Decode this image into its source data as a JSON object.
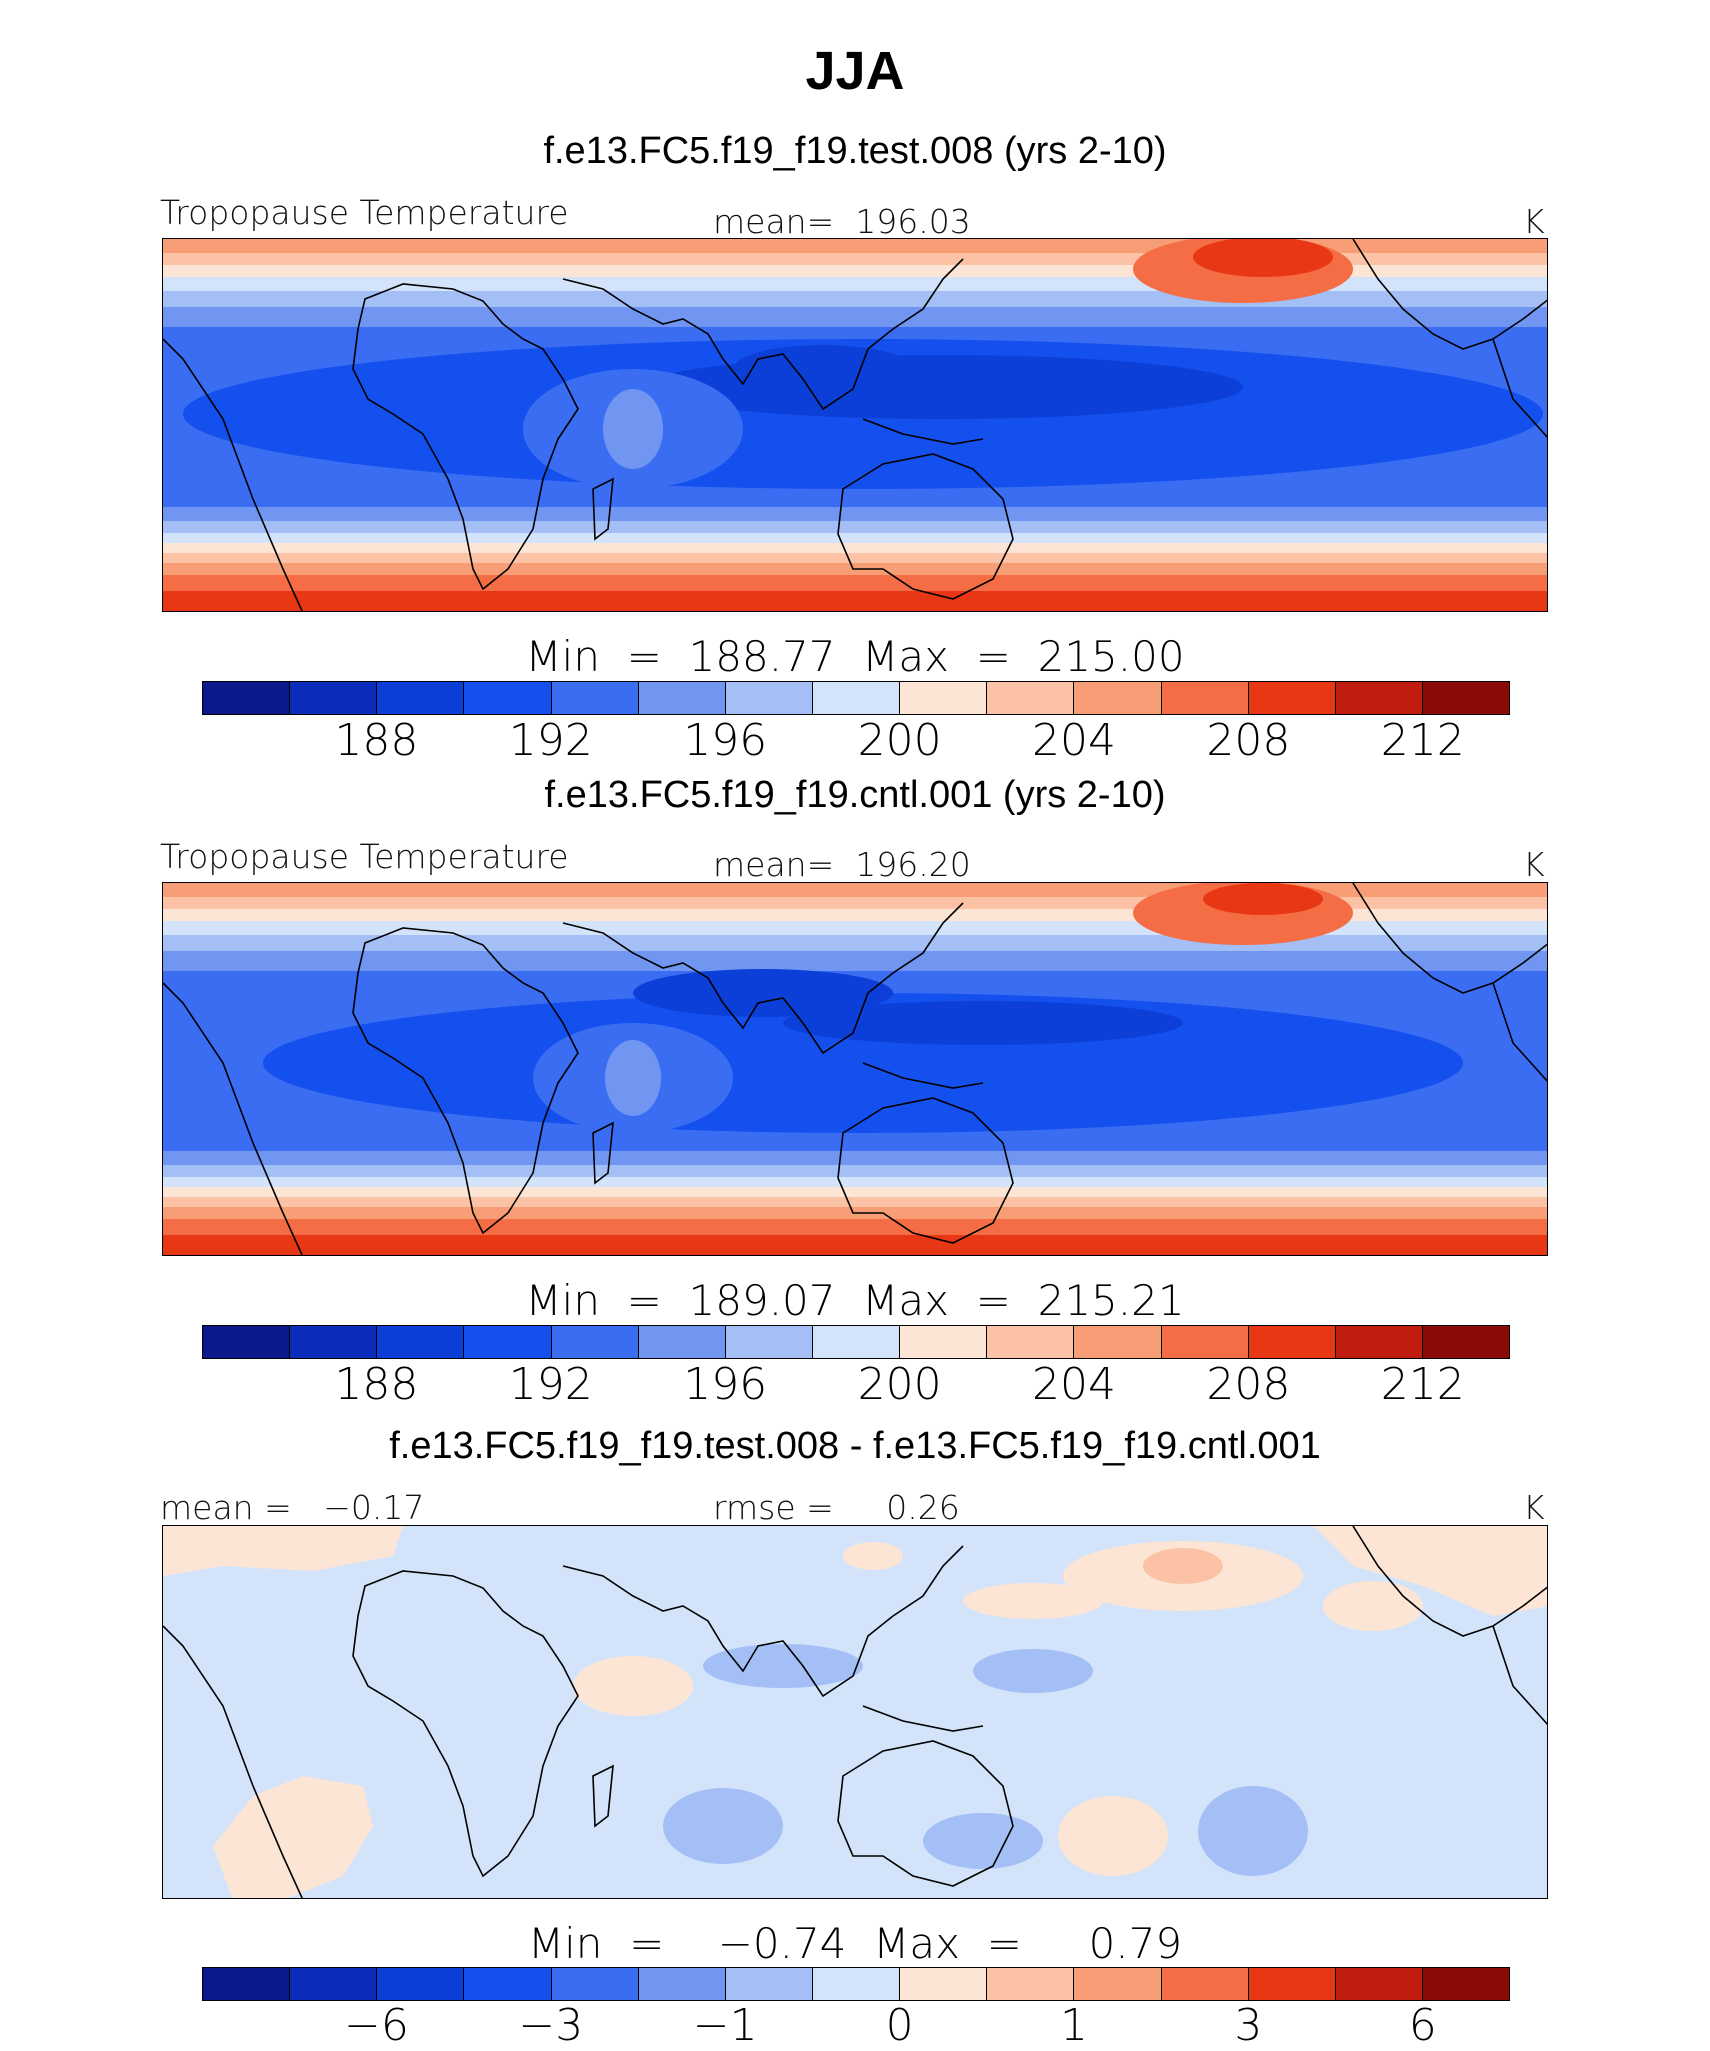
{
  "title": "JJA",
  "colors": [
    "#0a1a8a",
    "#0b2cb8",
    "#0c3fd8",
    "#1450ee",
    "#3a6df2",
    "#7096f2",
    "#a3bff5",
    "#d3e4fa",
    "#fde5d5",
    "#fbc2a5",
    "#f79e76",
    "#f46d45",
    "#e83714",
    "#c01d0e",
    "#8a0b05"
  ],
  "panels": [
    {
      "title": "f.e13.FC5.f19_f19.test.008 (yrs 2-10)",
      "variable": "Tropopause Temperature",
      "stat_label": "mean=  196.03",
      "units": "K",
      "min_max": "Min  =  188.77  Max  =  215.00",
      "ticks": [
        "188",
        "192",
        "196",
        "200",
        "204",
        "208",
        "212"
      ],
      "field_type": "absolute"
    },
    {
      "title": "f.e13.FC5.f19_f19.cntl.001 (yrs 2-10)",
      "variable": "Tropopause Temperature",
      "stat_label": "mean=  196.20",
      "units": "K",
      "min_max": "Min  =  189.07  Max  =  215.21",
      "ticks": [
        "188",
        "192",
        "196",
        "200",
        "204",
        "208",
        "212"
      ],
      "field_type": "absolute"
    },
    {
      "title": "f.e13.FC5.f19_f19.test.008 - f.e13.FC5.f19_f19.cntl.001",
      "variable": "mean =   −0.17",
      "stat_label": "rmse =     0.26",
      "units": "K",
      "min_max": "Min  =    −0.74  Max  =     0.79",
      "ticks": [
        "−6",
        "−3",
        "−1",
        "0",
        "1",
        "3",
        "6"
      ],
      "field_type": "difference"
    }
  ]
}
